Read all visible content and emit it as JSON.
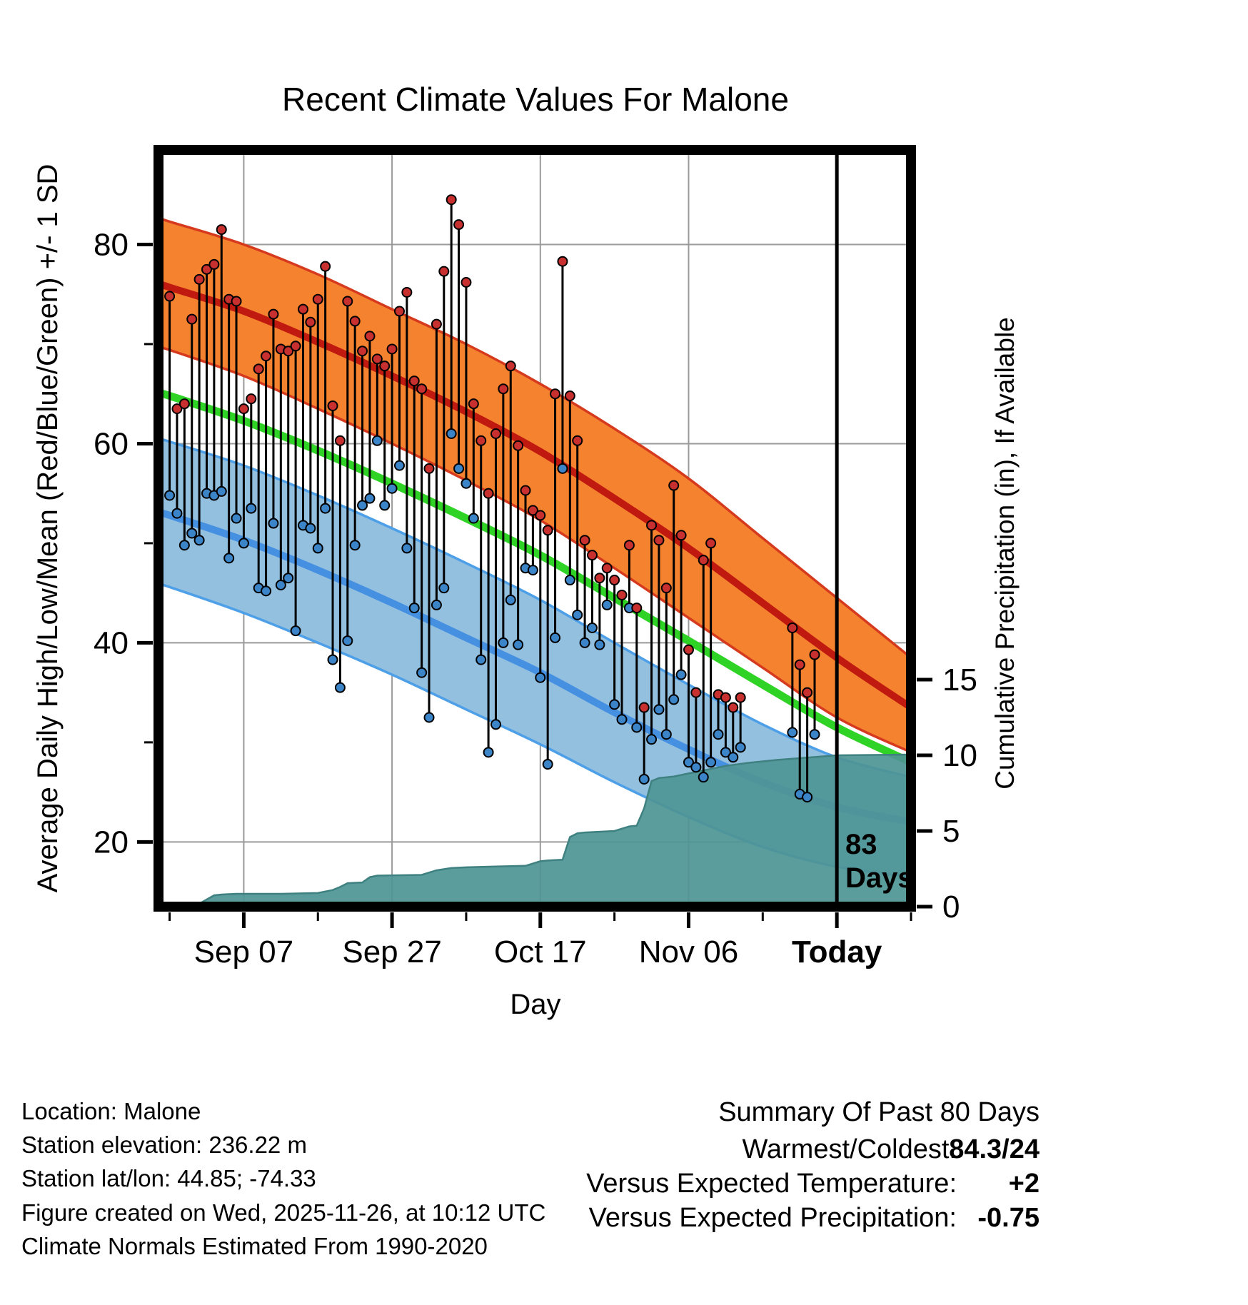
{
  "title": "Recent Climate Values For Malone",
  "annotation": {
    "line1": "83",
    "line2": "Days"
  },
  "footer": {
    "lines": [
      "Location: Malone",
      "Station elevation: 236.22 m",
      "Station lat/lon: 44.85; -74.33",
      "Figure created on Wed, 2025-11-26, at 10:12 UTC",
      "Climate Normals Estimated From 1990-2020"
    ]
  },
  "summary": {
    "title": "Summary Of Past 80 Days",
    "rows": [
      {
        "label": "Warmest/Coldest:",
        "value": "84.3/24",
        "color": "#000000"
      },
      {
        "label": "Versus Expected Temperature:",
        "value": "+2",
        "color": "#C03A1A"
      },
      {
        "label": "Versus Expected Precipitation:",
        "value": "-0.75",
        "color": "#C03A1A"
      }
    ]
  },
  "chart_data": {
    "type": "line",
    "title": "Recent Climate Values For Malone",
    "xlabel": "Day",
    "ylabel_left": "Average Daily High/Low/Mean (Red/Blue/Green) +/- 1 SD",
    "ylabel_right": "Cumulative Precipitation (in), If Available",
    "xlim": [
      -1.5,
      100
    ],
    "ylim_left": [
      13.5,
      89.5
    ],
    "ylim_right": [
      0,
      50
    ],
    "x_ticks": [
      {
        "day": 10,
        "label": "Sep 07",
        "bold": false
      },
      {
        "day": 30,
        "label": "Sep 27",
        "bold": false
      },
      {
        "day": 50,
        "label": "Oct 17",
        "bold": false
      },
      {
        "day": 70,
        "label": "Nov 06",
        "bold": false
      },
      {
        "day": 90,
        "label": "Today",
        "bold": true
      }
    ],
    "x_minor_tick_days": [
      0,
      20,
      40,
      60,
      80,
      100
    ],
    "y_left_ticks": [
      20,
      40,
      60,
      80
    ],
    "y_left_minor_ticks": [
      30,
      50,
      70
    ],
    "y_right_ticks": [
      0,
      5,
      10,
      15
    ],
    "today_day": 90,
    "grid": true,
    "legend_position": "none",
    "normals": {
      "days": [
        -2,
        0,
        10,
        20,
        30,
        40,
        50,
        60,
        70,
        80,
        90,
        100
      ],
      "high_upper": [
        82.8,
        82.3,
        80.0,
        77.0,
        73.5,
        70.0,
        66.0,
        61.5,
        56.5,
        50.5,
        44.5,
        38.5
      ],
      "high_mean": [
        76.2,
        75.7,
        73.3,
        70.2,
        66.8,
        63.2,
        59.2,
        54.5,
        49.5,
        44.0,
        38.5,
        33.5
      ],
      "high_lower": [
        69.8,
        69.4,
        66.8,
        63.5,
        60.0,
        56.3,
        52.3,
        47.5,
        42.5,
        37.5,
        32.5,
        29.0
      ],
      "mean": [
        65.2,
        64.8,
        62.3,
        59.3,
        56.0,
        52.5,
        48.8,
        44.5,
        40.2,
        35.8,
        31.5,
        28.0
      ],
      "low_upper": [
        60.6,
        60.2,
        57.8,
        54.8,
        51.5,
        48.0,
        44.3,
        40.0,
        35.8,
        31.8,
        28.5,
        26.5
      ],
      "low_mean": [
        53.2,
        52.8,
        50.3,
        47.3,
        44.0,
        40.5,
        37.0,
        33.0,
        29.3,
        26.0,
        23.5,
        22.0
      ],
      "low_lower": [
        46.0,
        45.6,
        43.0,
        40.0,
        36.8,
        33.3,
        29.8,
        26.0,
        22.5,
        19.5,
        17.5,
        16.5
      ]
    },
    "daily": {
      "days": [
        0,
        1,
        2,
        3,
        4,
        5,
        6,
        7,
        8,
        9,
        10,
        11,
        12,
        13,
        14,
        15,
        16,
        17,
        18,
        19,
        20,
        21,
        22,
        23,
        24,
        25,
        26,
        27,
        28,
        29,
        30,
        31,
        32,
        33,
        34,
        35,
        36,
        37,
        38,
        39,
        40,
        41,
        42,
        43,
        44,
        45,
        46,
        47,
        48,
        49,
        50,
        51,
        52,
        53,
        54,
        55,
        56,
        57,
        58,
        59,
        60,
        61,
        62,
        63,
        64,
        65,
        66,
        67,
        68,
        69,
        70,
        71,
        72,
        73,
        74,
        75,
        76,
        77,
        84,
        85,
        86,
        87
      ],
      "low": [
        54.8,
        53.0,
        49.8,
        51.0,
        50.3,
        55.0,
        54.8,
        55.2,
        48.5,
        52.5,
        50.0,
        53.5,
        45.5,
        45.2,
        52.0,
        45.8,
        46.5,
        41.2,
        51.8,
        51.5,
        49.5,
        53.5,
        38.3,
        35.5,
        40.2,
        49.8,
        53.8,
        54.5,
        60.3,
        53.8,
        55.5,
        57.8,
        49.5,
        43.5,
        37.0,
        32.5,
        43.8,
        45.5,
        61.0,
        57.5,
        56.0,
        52.5,
        38.3,
        29.0,
        31.8,
        40.0,
        44.3,
        39.8,
        47.5,
        47.3,
        36.5,
        27.8,
        40.5,
        57.5,
        46.3,
        42.8,
        40.0,
        41.5,
        39.8,
        43.8,
        33.8,
        32.3,
        43.5,
        31.5,
        26.3,
        30.3,
        33.3,
        30.8,
        34.3,
        36.8,
        28.0,
        27.5,
        26.5,
        28.0,
        30.8,
        29.0,
        28.5,
        29.5,
        31.0,
        24.8,
        24.5,
        30.8
      ],
      "high": [
        74.8,
        63.5,
        64.0,
        72.5,
        76.5,
        77.5,
        78.0,
        81.5,
        74.5,
        74.3,
        63.5,
        64.5,
        67.5,
        68.8,
        73.0,
        69.5,
        69.3,
        69.8,
        73.5,
        72.2,
        74.5,
        77.8,
        63.8,
        60.3,
        74.3,
        72.3,
        69.3,
        70.8,
        68.5,
        67.8,
        69.5,
        73.3,
        75.2,
        66.3,
        65.5,
        57.5,
        72.0,
        77.3,
        84.5,
        82.0,
        76.2,
        64.0,
        60.3,
        55.0,
        61.0,
        65.5,
        67.8,
        59.8,
        55.3,
        53.3,
        52.8,
        51.3,
        65.0,
        78.3,
        64.8,
        60.3,
        50.3,
        48.8,
        46.5,
        47.5,
        46.3,
        44.8,
        49.8,
        43.5,
        33.5,
        51.8,
        50.3,
        45.5,
        55.8,
        50.8,
        39.3,
        35.0,
        48.3,
        50.0,
        34.8,
        34.5,
        33.5,
        34.5,
        41.5,
        37.8,
        35.0,
        38.8
      ]
    },
    "precip_cumulative": {
      "days": [
        -1.5,
        2,
        4,
        6,
        7,
        9,
        15,
        20,
        22,
        23,
        24,
        26,
        27,
        28,
        34,
        36,
        38,
        40,
        44,
        48,
        50,
        51,
        53,
        54,
        55,
        56,
        60,
        62,
        63,
        64,
        65,
        66,
        68,
        70,
        72,
        75,
        78,
        82,
        86,
        90,
        100
      ],
      "values": [
        0.1,
        0.15,
        0.2,
        0.75,
        0.8,
        0.85,
        0.85,
        0.9,
        1.1,
        1.3,
        1.55,
        1.6,
        1.95,
        2.05,
        2.1,
        2.4,
        2.55,
        2.6,
        2.65,
        2.7,
        3.0,
        3.05,
        3.1,
        4.6,
        4.85,
        4.9,
        5.0,
        5.3,
        5.35,
        6.5,
        8.3,
        8.5,
        8.6,
        8.8,
        9.0,
        9.3,
        9.5,
        9.7,
        9.85,
        10.0,
        10.05
      ]
    },
    "colors": {
      "high_band": "#F5822E",
      "high_edge": "#D63A1E",
      "high_line": "#C01A10",
      "mean_line": "#2FD326",
      "low_band": "#94C0DF",
      "low_edge": "#4D9FE8",
      "low_line": "#4690E2",
      "precip_fill": "#4F9494",
      "precip_edge": "#3F8180",
      "daily_line": "#000000",
      "high_dot": "#C83030",
      "low_dot": "#3C84C8",
      "grid": "#9A9A9A",
      "today_line": "#000000"
    }
  }
}
